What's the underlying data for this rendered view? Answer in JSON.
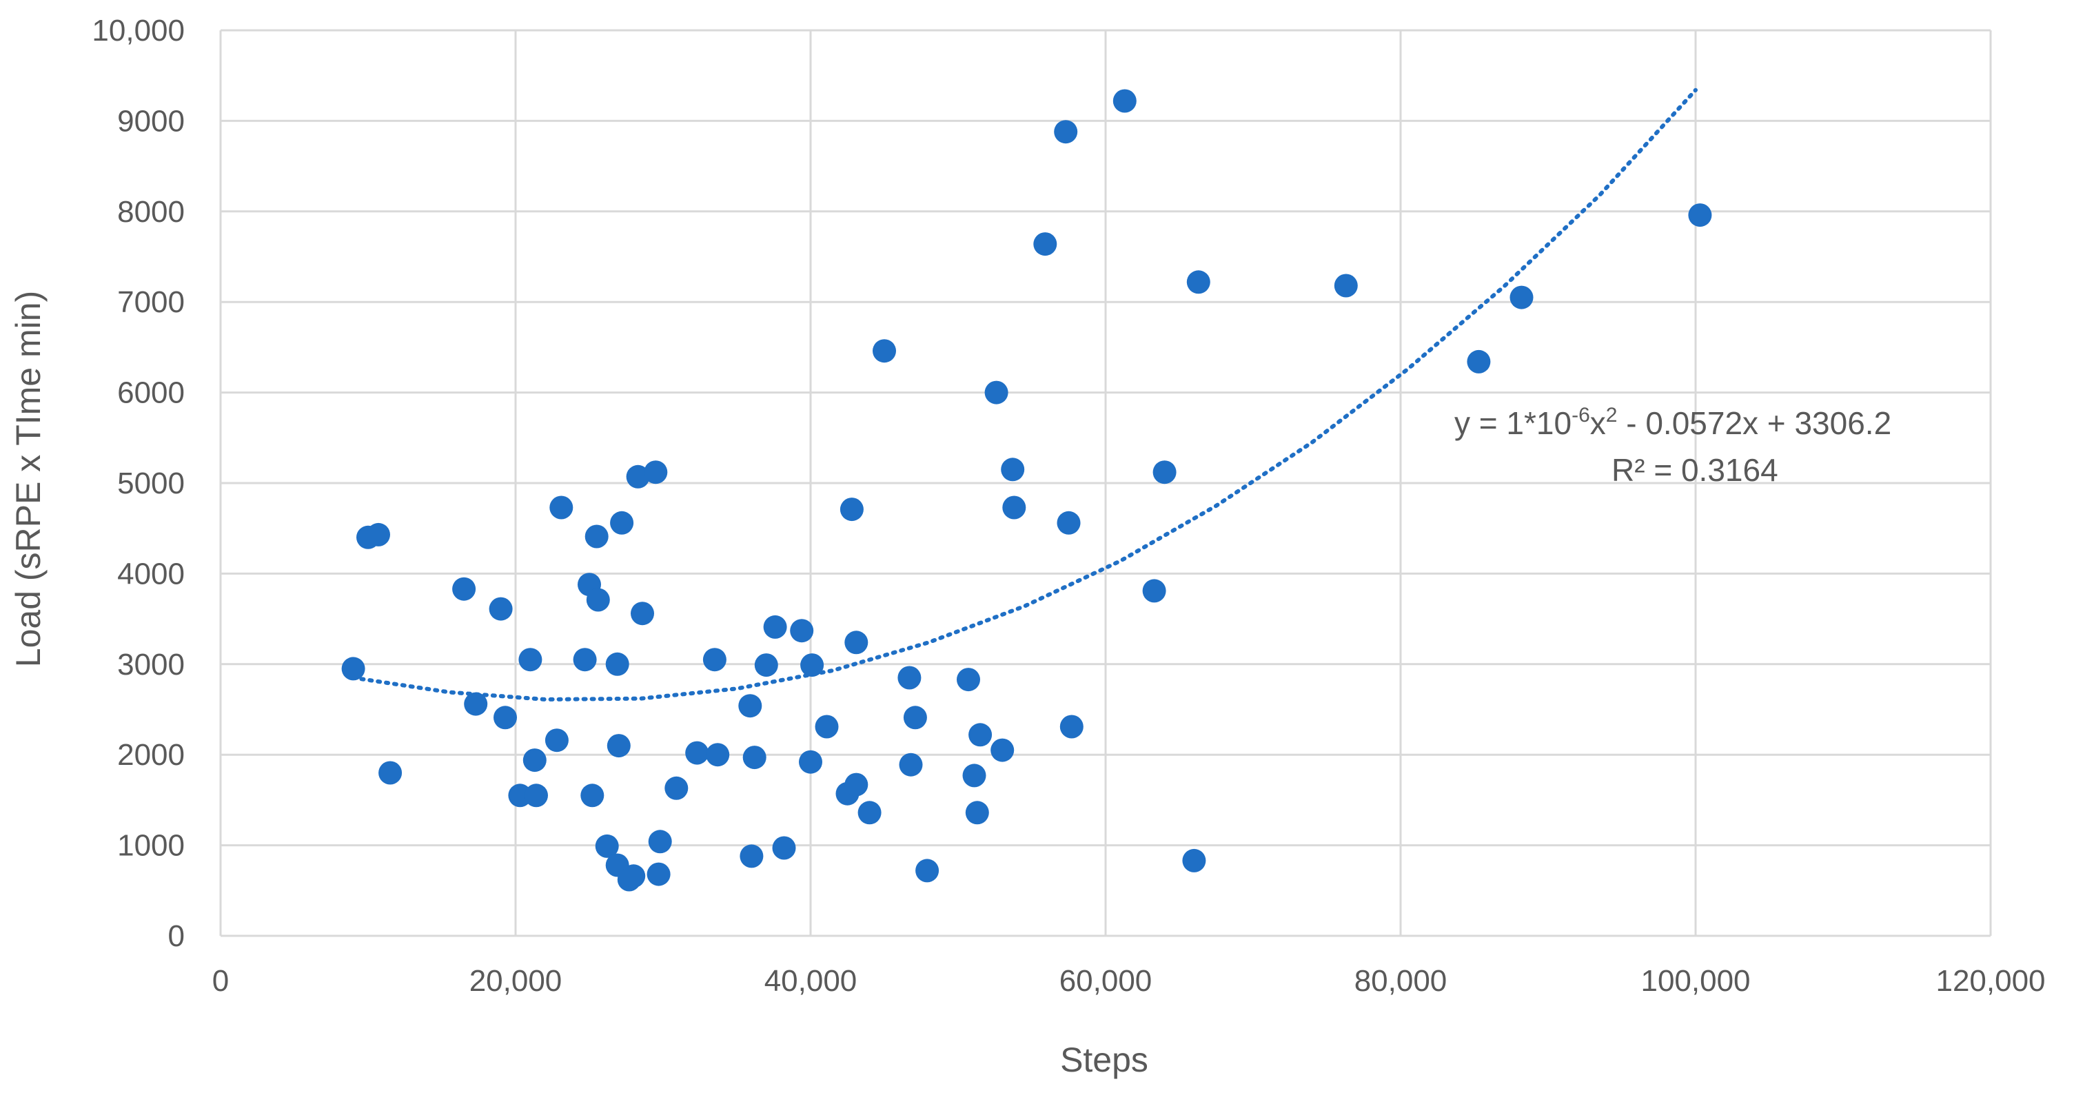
{
  "chart_data": {
    "type": "scatter",
    "xlabel": "Steps",
    "ylabel": "Load (sRPE x TIme min)",
    "xlim": [
      0,
      120000
    ],
    "ylim": [
      0,
      10000
    ],
    "x_ticks": [
      0,
      20000,
      40000,
      60000,
      80000,
      100000,
      120000
    ],
    "x_tick_labels": [
      "0",
      "20,000",
      "40,000",
      "60,000",
      "80,000",
      "100,000",
      "120,000"
    ],
    "y_ticks": [
      0,
      1000,
      2000,
      3000,
      4000,
      5000,
      6000,
      7000,
      8000,
      9000,
      10000
    ],
    "y_tick_labels": [
      "0",
      "1000",
      "2000",
      "3000",
      "4000",
      "5000",
      "6000",
      "7000",
      "8000",
      "9000",
      "10,000"
    ],
    "grid": true,
    "marker_color": "#1f6fc5",
    "points": [
      {
        "x": 9000,
        "y": 2950
      },
      {
        "x": 10000,
        "y": 4400
      },
      {
        "x": 10700,
        "y": 4430
      },
      {
        "x": 11500,
        "y": 1800
      },
      {
        "x": 16500,
        "y": 3830
      },
      {
        "x": 17300,
        "y": 2560
      },
      {
        "x": 19000,
        "y": 3610
      },
      {
        "x": 19300,
        "y": 2410
      },
      {
        "x": 20300,
        "y": 1550
      },
      {
        "x": 21000,
        "y": 3050
      },
      {
        "x": 21300,
        "y": 1940
      },
      {
        "x": 21400,
        "y": 1550
      },
      {
        "x": 22800,
        "y": 2160
      },
      {
        "x": 23100,
        "y": 4730
      },
      {
        "x": 24700,
        "y": 3050
      },
      {
        "x": 25000,
        "y": 3880
      },
      {
        "x": 25200,
        "y": 1550
      },
      {
        "x": 25500,
        "y": 4410
      },
      {
        "x": 25600,
        "y": 3710
      },
      {
        "x": 26200,
        "y": 990
      },
      {
        "x": 26900,
        "y": 3000
      },
      {
        "x": 26900,
        "y": 780
      },
      {
        "x": 27000,
        "y": 2100
      },
      {
        "x": 27200,
        "y": 4560
      },
      {
        "x": 27700,
        "y": 620
      },
      {
        "x": 28000,
        "y": 660
      },
      {
        "x": 28300,
        "y": 5070
      },
      {
        "x": 28600,
        "y": 3560
      },
      {
        "x": 29500,
        "y": 5120
      },
      {
        "x": 29700,
        "y": 680
      },
      {
        "x": 29800,
        "y": 1040
      },
      {
        "x": 30900,
        "y": 1630
      },
      {
        "x": 32300,
        "y": 2020
      },
      {
        "x": 33500,
        "y": 3050
      },
      {
        "x": 33700,
        "y": 2000
      },
      {
        "x": 35900,
        "y": 2540
      },
      {
        "x": 36000,
        "y": 880
      },
      {
        "x": 36200,
        "y": 1970
      },
      {
        "x": 37000,
        "y": 2990
      },
      {
        "x": 37600,
        "y": 3410
      },
      {
        "x": 38200,
        "y": 970
      },
      {
        "x": 39400,
        "y": 3370
      },
      {
        "x": 40000,
        "y": 1920
      },
      {
        "x": 40100,
        "y": 2990
      },
      {
        "x": 41100,
        "y": 2310
      },
      {
        "x": 42500,
        "y": 1570
      },
      {
        "x": 42800,
        "y": 4710
      },
      {
        "x": 43100,
        "y": 1670
      },
      {
        "x": 43100,
        "y": 3240
      },
      {
        "x": 44000,
        "y": 1360
      },
      {
        "x": 45000,
        "y": 6460
      },
      {
        "x": 46700,
        "y": 2850
      },
      {
        "x": 46800,
        "y": 1890
      },
      {
        "x": 47100,
        "y": 2410
      },
      {
        "x": 47900,
        "y": 720
      },
      {
        "x": 50700,
        "y": 2830
      },
      {
        "x": 51100,
        "y": 1770
      },
      {
        "x": 51300,
        "y": 1360
      },
      {
        "x": 51500,
        "y": 2220
      },
      {
        "x": 52600,
        "y": 6000
      },
      {
        "x": 53000,
        "y": 2050
      },
      {
        "x": 53700,
        "y": 5150
      },
      {
        "x": 53800,
        "y": 4730
      },
      {
        "x": 55900,
        "y": 7640
      },
      {
        "x": 57300,
        "y": 8880
      },
      {
        "x": 57500,
        "y": 4560
      },
      {
        "x": 57700,
        "y": 2310
      },
      {
        "x": 61300,
        "y": 9220
      },
      {
        "x": 63300,
        "y": 3810
      },
      {
        "x": 64000,
        "y": 5120
      },
      {
        "x": 66000,
        "y": 830
      },
      {
        "x": 66300,
        "y": 7220
      },
      {
        "x": 76300,
        "y": 7180
      },
      {
        "x": 85300,
        "y": 6340
      },
      {
        "x": 88200,
        "y": 7050
      },
      {
        "x": 100300,
        "y": 7960
      }
    ],
    "trendline": {
      "type": "polynomial",
      "degree": 2,
      "x_range": [
        9000,
        100000
      ],
      "y_values": [
        2850,
        2690,
        2610,
        2620,
        2730,
        2930,
        3240,
        3640,
        4140,
        4750,
        5450,
        6260,
        7170,
        8180,
        9340
      ]
    },
    "equation": {
      "text": "y = 1*10",
      "exp1": "-6",
      "mid": "x",
      "exp2": "2",
      "tail": " - 0.0572x + 3306.2",
      "r2": "R² = 0.3164"
    }
  }
}
